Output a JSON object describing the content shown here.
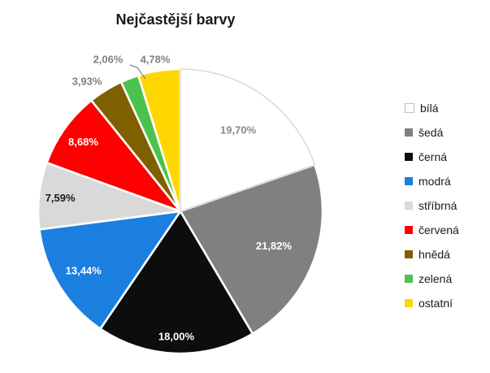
{
  "chart_data": {
    "type": "pie",
    "title": "Nejčastější barvy",
    "direction": "clockwise",
    "start_angle_deg": 0,
    "legend_position": "right",
    "value_format": "percent-comma-decimal",
    "background_color": "#FFFFFF",
    "slice_separator_color": "#FFFFFF",
    "white_slice_border_color": "#D4D4D4",
    "outside_label_color": "#808080",
    "slices": [
      {
        "label": "bílá",
        "value": 19.7,
        "display": "19,70%",
        "color": "#FFFFFF",
        "label_color": "#8A8A8A",
        "label_placement": "inside"
      },
      {
        "label": "šedá",
        "value": 21.82,
        "display": "21,82%",
        "color": "#808080",
        "label_color": "#FFFFFF",
        "label_placement": "inside"
      },
      {
        "label": "černá",
        "value": 18.0,
        "display": "18,00%",
        "color": "#0D0D0D",
        "label_color": "#FFFFFF",
        "label_placement": "inside"
      },
      {
        "label": "modrá",
        "value": 13.44,
        "display": "13,44%",
        "color": "#1B7FE0",
        "label_color": "#FFFFFF",
        "label_placement": "inside"
      },
      {
        "label": "stříbrná",
        "value": 7.59,
        "display": "7,59%",
        "color": "#D9D9D9",
        "label_color": "#1A1A1A",
        "label_placement": "inside"
      },
      {
        "label": "červená",
        "value": 8.68,
        "display": "8,68%",
        "color": "#FF0000",
        "label_color": "#FFFFFF",
        "label_placement": "inside"
      },
      {
        "label": "hnědá",
        "value": 3.93,
        "display": "3,93%",
        "color": "#7F6000",
        "label_color": "#808080",
        "label_placement": "outside"
      },
      {
        "label": "zelená",
        "value": 2.06,
        "display": "2,06%",
        "color": "#4CC24C",
        "label_color": "#808080",
        "label_placement": "outside",
        "leader_line": true
      },
      {
        "label": "ostatní",
        "value": 4.78,
        "display": "4,78%",
        "color": "#FFD700",
        "label_color": "#808080",
        "label_placement": "outside"
      }
    ]
  }
}
